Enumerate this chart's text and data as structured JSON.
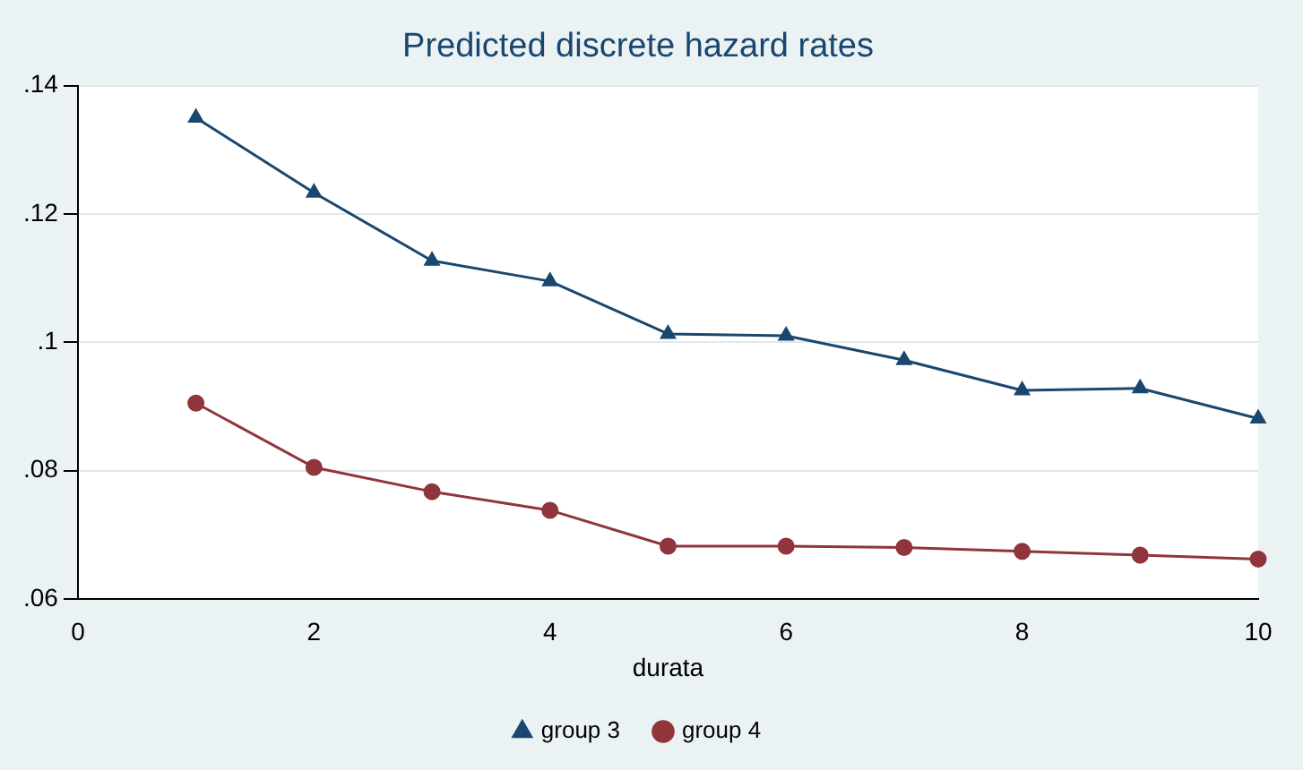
{
  "chart_data": {
    "type": "line",
    "title": "Predicted discrete hazard rates",
    "xlabel": "durata",
    "x": [
      1,
      2,
      3,
      4,
      5,
      6,
      7,
      8,
      9,
      10
    ],
    "series": [
      {
        "name": "group 3",
        "color": "#1a476f",
        "marker": "triangle",
        "values": [
          0.135,
          0.1233,
          0.1127,
          0.1095,
          0.1013,
          0.101,
          0.0972,
          0.0925,
          0.0928,
          0.0881
        ]
      },
      {
        "name": "group 4",
        "color": "#90353b",
        "marker": "circle",
        "values": [
          0.0905,
          0.0805,
          0.0767,
          0.0738,
          0.0682,
          0.0682,
          0.068,
          0.0674,
          0.0668,
          0.0662
        ]
      }
    ],
    "xlim": [
      0,
      10
    ],
    "xticks": [
      0,
      2,
      4,
      6,
      8,
      10
    ],
    "ylim": [
      0.06,
      0.14
    ],
    "yticks": [
      {
        "value": 0.06,
        "label": ".06"
      },
      {
        "value": 0.08,
        "label": ".08"
      },
      {
        "value": 0.1,
        "label": ".1"
      },
      {
        "value": 0.12,
        "label": ".12"
      },
      {
        "value": 0.14,
        "label": ".14"
      }
    ],
    "grid": "y",
    "legend": "bottom"
  }
}
